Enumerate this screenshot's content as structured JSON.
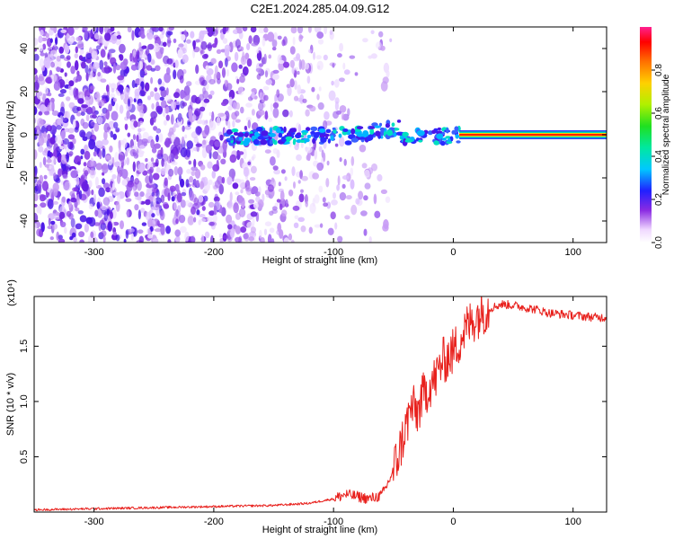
{
  "figure": {
    "title": "C2E1.2024.285.04.09.G12",
    "colors": {
      "snr_line": "#e8201c",
      "axis": "#000000",
      "background": "#ffffff"
    }
  },
  "chart_data": [
    {
      "type": "heatmap",
      "xlabel": "Height of straight line (km)",
      "ylabel": "Frequency (Hz)",
      "xlim": [
        -350,
        128
      ],
      "ylim": [
        -50,
        50
      ],
      "xticks": [
        -300,
        -200,
        -100,
        0,
        100
      ],
      "xtick_labels": [
        "-300",
        "-200",
        "-100",
        "0",
        "100"
      ],
      "yticks": [
        -40,
        -20,
        0,
        20,
        40
      ],
      "ytick_labels": [
        "-40",
        "-20",
        "0",
        "20",
        "40"
      ],
      "colorbar": {
        "label": "Normalized spectral amplitude",
        "range": [
          0,
          1
        ],
        "ticks": [
          0.0,
          0.2,
          0.4,
          0.6,
          0.8
        ],
        "tick_labels": [
          "0.0",
          "0.2",
          "0.4",
          "0.6",
          "0.8"
        ],
        "colormap": "rainbow-white"
      },
      "features": {
        "noise_region_x": [
          -350,
          -90
        ],
        "strong_line_x": [
          5,
          128
        ],
        "strong_line_frequency": 0
      }
    },
    {
      "type": "line",
      "xlabel": "Height of straight line (km)",
      "ylabel": "SNR (10 * v/v)",
      "yscale_label": "(x10⁴)",
      "xlim": [
        -350,
        128
      ],
      "ylim": [
        0,
        1.95
      ],
      "xticks": [
        -300,
        -200,
        -100,
        0,
        100
      ],
      "xtick_labels": [
        "-300",
        "-200",
        "-100",
        "0",
        "100"
      ],
      "yticks": [
        0.5,
        1.0,
        1.5
      ],
      "ytick_labels": [
        "0.5",
        "1.0",
        "1.5"
      ],
      "series": [
        {
          "color": "#e8201c",
          "x": [
            -350,
            -300,
            -250,
            -200,
            -150,
            -120,
            -100,
            -90,
            -80,
            -70,
            -60,
            -55,
            -50,
            -45,
            -40,
            -35,
            -30,
            -25,
            -20,
            -15,
            -10,
            -5,
            0,
            5,
            10,
            15,
            20,
            25,
            30,
            35,
            40,
            50,
            60,
            70,
            80,
            90,
            100,
            110,
            120,
            128
          ],
          "y": [
            0.02,
            0.03,
            0.04,
            0.05,
            0.06,
            0.08,
            0.12,
            0.16,
            0.14,
            0.12,
            0.15,
            0.25,
            0.38,
            0.55,
            0.75,
            0.95,
            0.9,
            1.05,
            1.15,
            1.2,
            1.35,
            1.4,
            1.45,
            1.55,
            1.65,
            1.72,
            1.78,
            1.82,
            1.84,
            1.86,
            1.88,
            1.87,
            1.85,
            1.83,
            1.8,
            1.79,
            1.78,
            1.77,
            1.76,
            1.76
          ]
        }
      ]
    }
  ]
}
